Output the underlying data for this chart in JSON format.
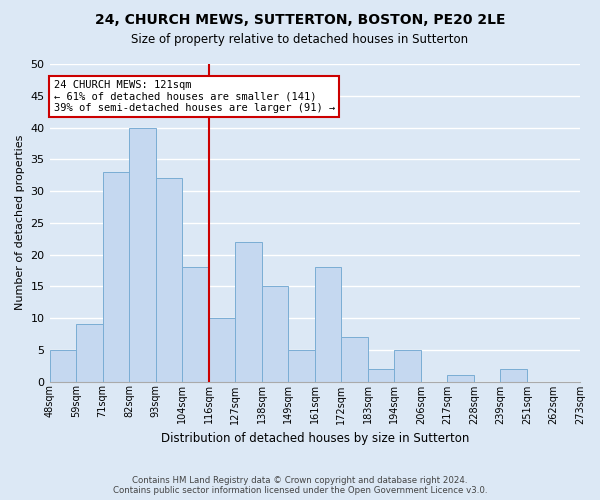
{
  "title": "24, CHURCH MEWS, SUTTERTON, BOSTON, PE20 2LE",
  "subtitle": "Size of property relative to detached houses in Sutterton",
  "xlabel": "Distribution of detached houses by size in Sutterton",
  "ylabel": "Number of detached properties",
  "footer1": "Contains HM Land Registry data © Crown copyright and database right 2024.",
  "footer2": "Contains public sector information licensed under the Open Government Licence v3.0.",
  "bins": [
    "48sqm",
    "59sqm",
    "71sqm",
    "82sqm",
    "93sqm",
    "104sqm",
    "116sqm",
    "127sqm",
    "138sqm",
    "149sqm",
    "161sqm",
    "172sqm",
    "183sqm",
    "194sqm",
    "206sqm",
    "217sqm",
    "228sqm",
    "239sqm",
    "251sqm",
    "262sqm",
    "273sqm"
  ],
  "values": [
    5,
    9,
    33,
    40,
    32,
    18,
    10,
    22,
    15,
    5,
    18,
    7,
    2,
    5,
    0,
    1,
    0,
    2,
    0,
    0
  ],
  "bar_color": "#c5d8f0",
  "bar_edge_color": "#7aadd4",
  "marker_bin_index": 6,
  "marker_color": "#cc0000",
  "annotation_title": "24 CHURCH MEWS: 121sqm",
  "annotation_line1": "← 61% of detached houses are smaller (141)",
  "annotation_line2": "39% of semi-detached houses are larger (91) →",
  "ylim": [
    0,
    50
  ],
  "yticks": [
    0,
    5,
    10,
    15,
    20,
    25,
    30,
    35,
    40,
    45,
    50
  ],
  "background_color": "#dce8f5"
}
